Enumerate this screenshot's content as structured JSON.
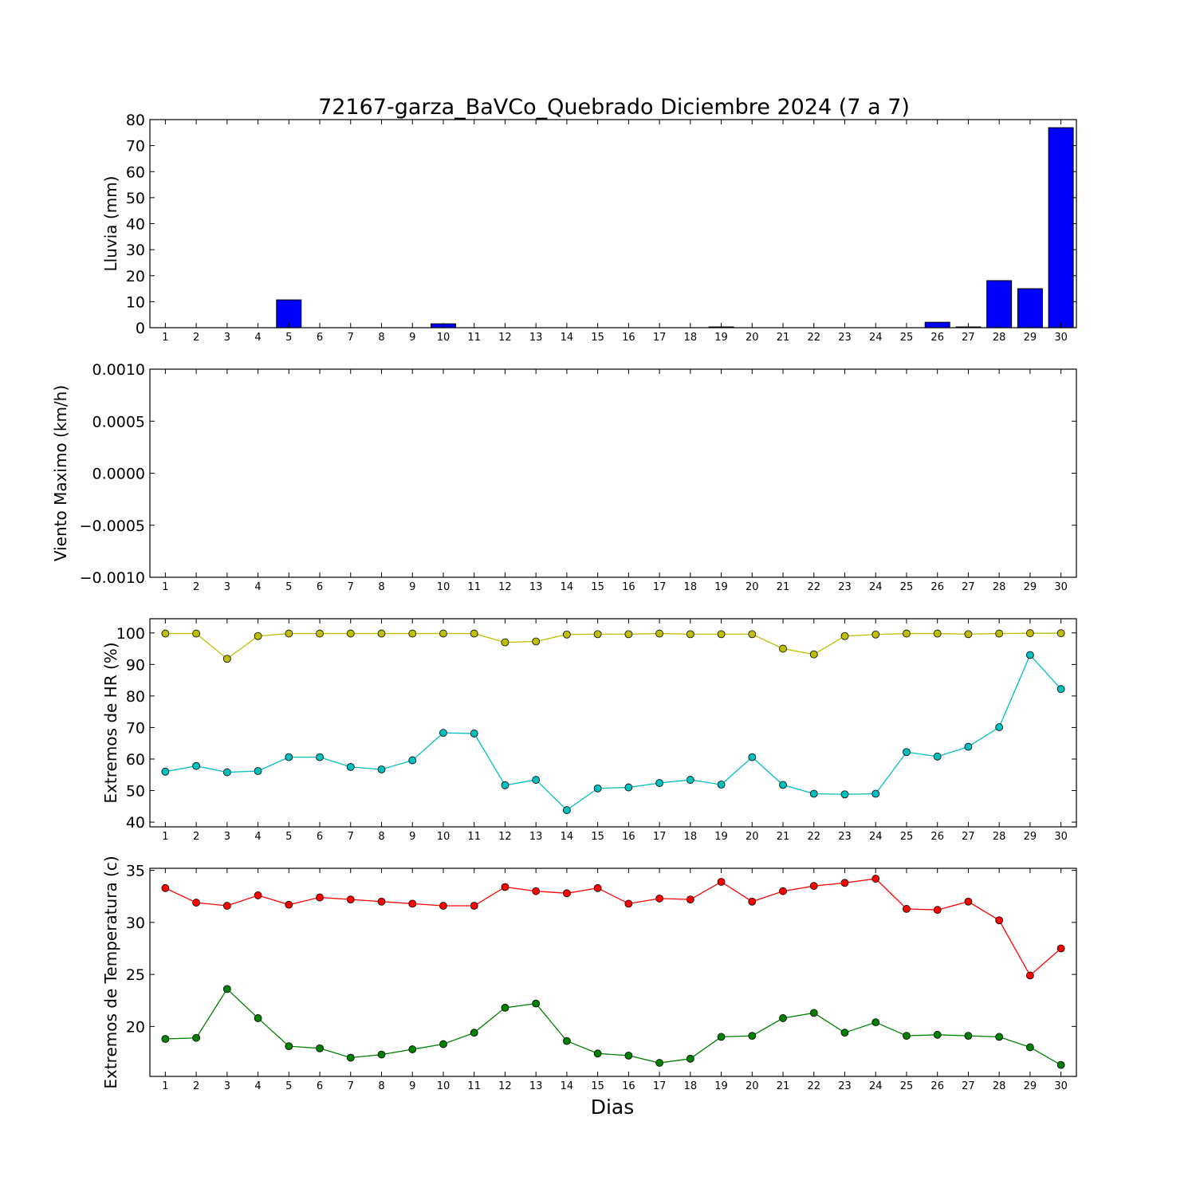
{
  "title": "72167-garza_BaVCo_Quebrado Diciembre 2024  (7 a 7)",
  "xlabel": "Dias",
  "days": [
    1,
    2,
    3,
    4,
    5,
    6,
    7,
    8,
    9,
    10,
    11,
    12,
    13,
    14,
    15,
    16,
    17,
    18,
    19,
    20,
    21,
    22,
    23,
    24,
    25,
    26,
    27,
    28,
    29,
    30
  ],
  "chart_data": [
    {
      "id": "rain",
      "type": "bar",
      "ylabel": "Lluvia (mm)",
      "ylim": [
        0,
        80
      ],
      "yticks": [
        0,
        10,
        20,
        30,
        40,
        50,
        60,
        70,
        80
      ],
      "ytick_labels": [
        "0",
        "10",
        "20",
        "30",
        "40",
        "50",
        "60",
        "70",
        "80"
      ],
      "grid": false,
      "series": [
        {
          "color": "#0000ff",
          "values": [
            0,
            0,
            0,
            0,
            10.7,
            0,
            0,
            0,
            0,
            1.5,
            0,
            0,
            0,
            0,
            0,
            0,
            0,
            0,
            0.3,
            0,
            0,
            0,
            0,
            0,
            0,
            2.1,
            0.3,
            18.1,
            15.0,
            76.9
          ]
        }
      ]
    },
    {
      "id": "wind",
      "type": "line",
      "ylabel": "Viento Maximo (km/h)",
      "ylim": [
        -0.001,
        0.001
      ],
      "yticks": [
        -0.001,
        -0.0005,
        0,
        0.0005,
        0.001
      ],
      "ytick_labels": [
        "−0.0010",
        "−0.0005",
        "0.0000",
        "0.0005",
        "0.0010"
      ],
      "grid": false,
      "series": []
    },
    {
      "id": "hr",
      "type": "line",
      "ylabel": "Extremos de HR (%)",
      "ylim": [
        38.5,
        104.5
      ],
      "yticks": [
        40,
        50,
        60,
        70,
        80,
        90,
        100
      ],
      "ytick_labels": [
        "40",
        "50",
        "60",
        "70",
        "80",
        "90",
        "100"
      ],
      "grid": false,
      "series": [
        {
          "color": "#bfbf00",
          "values": [
            99.8,
            99.8,
            91.8,
            99.0,
            99.8,
            99.8,
            99.8,
            99.8,
            99.8,
            99.8,
            99.8,
            97.0,
            97.3,
            99.5,
            99.6,
            99.6,
            99.8,
            99.6,
            99.6,
            99.6,
            95.0,
            93.2,
            99.0,
            99.5,
            99.8,
            99.8,
            99.6,
            99.8,
            99.9,
            99.9
          ]
        },
        {
          "color": "#00bfbf",
          "values": [
            56.0,
            57.8,
            55.8,
            56.2,
            60.6,
            60.6,
            57.5,
            56.7,
            59.6,
            68.3,
            68.1,
            51.7,
            53.4,
            43.8,
            50.7,
            51.0,
            52.4,
            53.4,
            51.9,
            60.6,
            51.8,
            49.0,
            48.8,
            49.0,
            62.2,
            60.8,
            63.9,
            70.1,
            93.0,
            82.2
          ]
        }
      ]
    },
    {
      "id": "temp",
      "type": "line",
      "ylabel": "Extremos de Temperatura (c)",
      "ylim": [
        15.2,
        35.2
      ],
      "yticks": [
        20,
        25,
        30,
        35
      ],
      "ytick_labels": [
        "20",
        "25",
        "30",
        "35"
      ],
      "grid": false,
      "series": [
        {
          "color": "#ff0000",
          "values": [
            33.3,
            31.9,
            31.6,
            32.6,
            31.7,
            32.4,
            32.2,
            32.0,
            31.8,
            31.6,
            31.6,
            33.4,
            33.0,
            32.8,
            33.3,
            31.8,
            32.3,
            32.2,
            33.9,
            32.0,
            33.0,
            33.5,
            33.8,
            34.2,
            31.3,
            31.2,
            32.0,
            30.2,
            24.9,
            27.5
          ]
        },
        {
          "color": "#008000",
          "values": [
            18.8,
            18.9,
            23.6,
            20.8,
            18.1,
            17.9,
            17.0,
            17.3,
            17.8,
            18.3,
            19.4,
            21.8,
            22.2,
            18.6,
            17.4,
            17.2,
            16.5,
            16.9,
            19.0,
            19.1,
            20.8,
            21.3,
            19.4,
            20.4,
            19.1,
            19.2,
            19.1,
            19.0,
            18.0,
            16.3
          ]
        }
      ]
    }
  ]
}
